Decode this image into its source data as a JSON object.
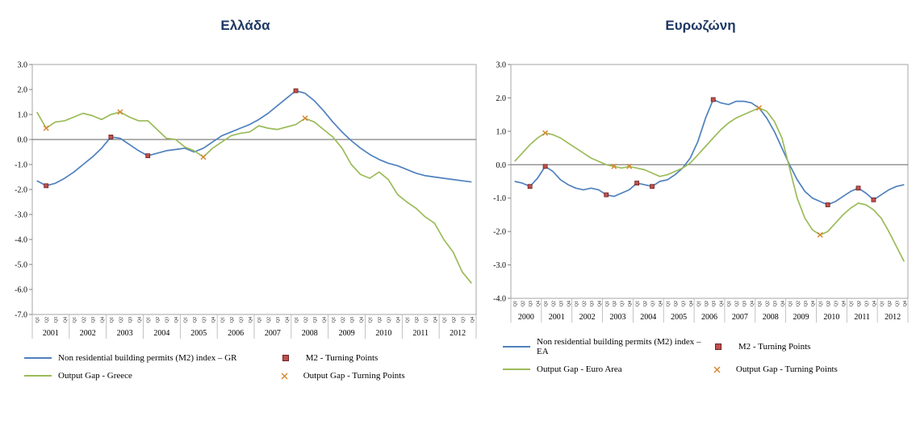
{
  "chart_data": [
    {
      "type": "line",
      "title": "Ελλάδα",
      "xlabel": "",
      "ylabel": "",
      "ylim": [
        -7.0,
        3.0
      ],
      "yticks": [
        3.0,
        2.0,
        1.0,
        0.0,
        -1.0,
        -2.0,
        -3.0,
        -4.0,
        -5.0,
        -6.0,
        -7.0
      ],
      "grid": false,
      "legend_position": "bottom",
      "years": [
        2001,
        2002,
        2003,
        2004,
        2005,
        2006,
        2007,
        2008,
        2009,
        2010,
        2011,
        2012
      ],
      "quarter_labels": [
        "Q1",
        "Q2",
        "Q3",
        "Q4"
      ],
      "series": [
        {
          "label": "Non residential building permits (M2) index – GR",
          "color": "#4F81BD",
          "values": [
            -1.65,
            -1.85,
            -1.75,
            -1.55,
            -1.3,
            -1.0,
            -0.7,
            -0.35,
            0.1,
            0.05,
            -0.2,
            -0.45,
            -0.65,
            -0.55,
            -0.45,
            -0.4,
            -0.35,
            -0.5,
            -0.35,
            -0.1,
            0.15,
            0.3,
            0.45,
            0.6,
            0.8,
            1.05,
            1.35,
            1.65,
            1.95,
            1.85,
            1.55,
            1.15,
            0.7,
            0.3,
            -0.05,
            -0.35,
            -0.6,
            -0.8,
            -0.95,
            -1.05,
            -1.2,
            -1.35,
            -1.45,
            -1.5,
            -1.55,
            -1.6,
            -1.65,
            -1.7
          ]
        },
        {
          "label": "Output Gap - Greece",
          "color": "#9BBB59",
          "values": [
            1.1,
            0.45,
            0.7,
            0.75,
            0.9,
            1.05,
            0.95,
            0.8,
            1.0,
            1.1,
            0.9,
            0.75,
            0.75,
            0.4,
            0.05,
            0.0,
            -0.3,
            -0.45,
            -0.7,
            -0.35,
            -0.1,
            0.15,
            0.25,
            0.3,
            0.55,
            0.45,
            0.4,
            0.5,
            0.6,
            0.85,
            0.7,
            0.4,
            0.1,
            -0.35,
            -1.0,
            -1.4,
            -1.55,
            -1.3,
            -1.6,
            -2.2,
            -2.5,
            -2.75,
            -3.1,
            -3.35,
            -4.0,
            -4.5,
            -5.3,
            -5.75
          ]
        }
      ],
      "markers": [
        {
          "label": "M2  - Turning Points",
          "shape": "square",
          "color": "#C0504D",
          "points": [
            {
              "q": "2001Q2",
              "value": -1.85
            },
            {
              "q": "2003Q1",
              "value": 0.1
            },
            {
              "q": "2004Q1",
              "value": -0.65
            },
            {
              "q": "2008Q1",
              "value": 1.95
            }
          ]
        },
        {
          "label": "Output Gap - Turning Points",
          "shape": "x",
          "color": "#D9822B",
          "points": [
            {
              "q": "2001Q2",
              "value": 0.45
            },
            {
              "q": "2003Q2",
              "value": 1.1
            },
            {
              "q": "2005Q3",
              "value": -0.7
            },
            {
              "q": "2008Q2",
              "value": 0.85
            }
          ]
        }
      ]
    },
    {
      "type": "line",
      "title": "Ευρωζώνη",
      "xlabel": "",
      "ylabel": "",
      "ylim": [
        -4.0,
        3.0
      ],
      "yticks": [
        3.0,
        2.0,
        1.0,
        0.0,
        -1.0,
        -2.0,
        -3.0,
        -4.0
      ],
      "grid": false,
      "legend_position": "bottom",
      "years": [
        2000,
        2001,
        2002,
        2003,
        2004,
        2005,
        2006,
        2007,
        2008,
        2009,
        2010,
        2011,
        2012
      ],
      "quarter_labels": [
        "Q1",
        "Q2",
        "Q3",
        "Q4"
      ],
      "series": [
        {
          "label": "Non residential building permits (M2) index – EA",
          "color": "#4F81BD",
          "values": [
            -0.5,
            -0.55,
            -0.65,
            -0.4,
            -0.05,
            -0.2,
            -0.45,
            -0.6,
            -0.7,
            -0.75,
            -0.7,
            -0.75,
            -0.9,
            -0.95,
            -0.85,
            -0.75,
            -0.55,
            -0.6,
            -0.65,
            -0.5,
            -0.45,
            -0.3,
            -0.1,
            0.2,
            0.7,
            1.4,
            1.95,
            1.85,
            1.8,
            1.9,
            1.9,
            1.85,
            1.7,
            1.4,
            1.0,
            0.5,
            0.0,
            -0.45,
            -0.8,
            -1.0,
            -1.1,
            -1.2,
            -1.1,
            -0.95,
            -0.8,
            -0.7,
            -0.85,
            -1.05,
            -0.9,
            -0.75,
            -0.65,
            -0.6
          ]
        },
        {
          "label": "Output Gap - Euro Area",
          "color": "#9BBB59",
          "values": [
            0.1,
            0.35,
            0.6,
            0.8,
            0.95,
            0.9,
            0.8,
            0.65,
            0.5,
            0.35,
            0.2,
            0.1,
            0.0,
            -0.05,
            -0.1,
            -0.05,
            -0.1,
            -0.15,
            -0.25,
            -0.35,
            -0.3,
            -0.2,
            -0.1,
            0.05,
            0.3,
            0.55,
            0.8,
            1.05,
            1.25,
            1.4,
            1.5,
            1.6,
            1.7,
            1.6,
            1.3,
            0.8,
            -0.1,
            -1.0,
            -1.6,
            -1.95,
            -2.1,
            -2.0,
            -1.75,
            -1.5,
            -1.3,
            -1.15,
            -1.2,
            -1.35,
            -1.6,
            -2.0,
            -2.45,
            -2.9
          ]
        }
      ],
      "markers": [
        {
          "label": "M2  - Turning Points",
          "shape": "square",
          "color": "#C0504D",
          "points": [
            {
              "q": "2000Q3",
              "value": -0.65
            },
            {
              "q": "2001Q1",
              "value": -0.05
            },
            {
              "q": "2003Q1",
              "value": -0.9
            },
            {
              "q": "2004Q1",
              "value": -0.55
            },
            {
              "q": "2004Q3",
              "value": -0.65
            },
            {
              "q": "2006Q3",
              "value": 1.95
            },
            {
              "q": "2010Q2",
              "value": -1.2
            },
            {
              "q": "2011Q2",
              "value": -0.7
            },
            {
              "q": "2011Q4",
              "value": -1.05
            }
          ]
        },
        {
          "label": "Output Gap - Turning Points",
          "shape": "x",
          "color": "#D9822B",
          "points": [
            {
              "q": "2001Q1",
              "value": 0.95
            },
            {
              "q": "2003Q2",
              "value": -0.05
            },
            {
              "q": "2003Q4",
              "value": -0.05
            },
            {
              "q": "2008Q1",
              "value": 1.7
            },
            {
              "q": "2010Q1",
              "value": -2.1
            }
          ]
        }
      ]
    }
  ]
}
